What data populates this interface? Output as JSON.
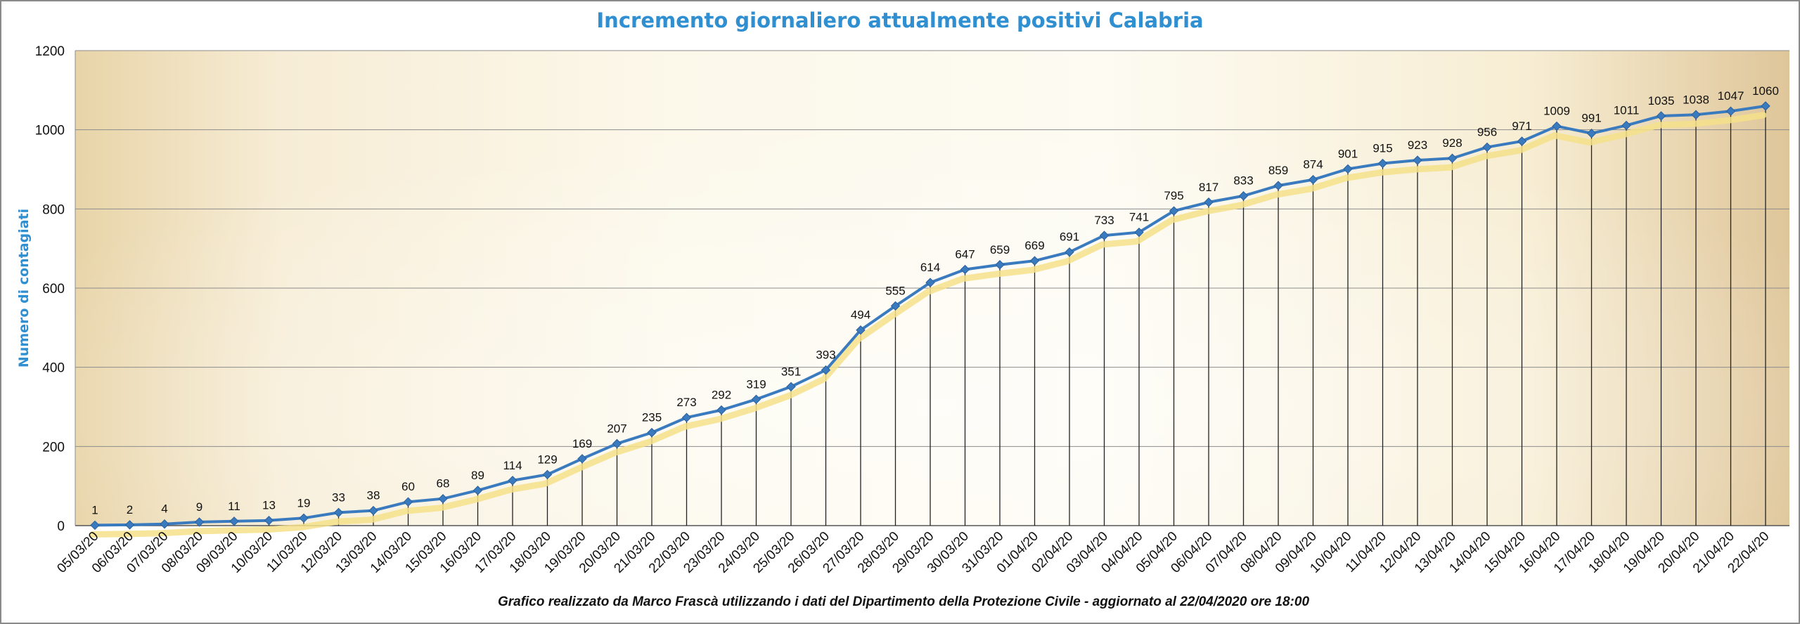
{
  "chart_data": {
    "type": "line",
    "title": "Incremento giornaliero attualmente positivi Calabria",
    "ylabel": "Numero di contagiati",
    "footer": "Grafico  realizzato da Marco Frascà  utilizzando i dati del Dipartimento  della Protezione Civile - aggiornato al 22/04/2020 ore 18:00",
    "ylim": [
      0,
      1200
    ],
    "yticks": [
      "0",
      "200",
      "400",
      "600",
      "800",
      "1000",
      "1200"
    ],
    "grid": true,
    "categories": [
      "05/03/20",
      "06/03/20",
      "07/03/20",
      "08/03/20",
      "09/03/20",
      "10/03/20",
      "11/03/20",
      "12/03/20",
      "13/03/20",
      "14/03/20",
      "15/03/20",
      "16/03/20",
      "17/03/20",
      "18/03/20",
      "19/03/20",
      "20/03/20",
      "21/03/20",
      "22/03/20",
      "23/03/20",
      "24/03/20",
      "25/03/20",
      "26/03/20",
      "27/03/20",
      "28/03/20",
      "29/03/20",
      "30/03/20",
      "31/03/20",
      "01/04/20",
      "02/04/20",
      "03/04/20",
      "04/04/20",
      "05/04/20",
      "06/04/20",
      "07/04/20",
      "08/04/20",
      "09/04/20",
      "10/04/20",
      "11/04/20",
      "12/04/20",
      "13/04/20",
      "14/04/20",
      "15/04/20",
      "16/04/20",
      "17/04/20",
      "18/04/20",
      "19/04/20",
      "20/04/20",
      "21/04/20",
      "22/04/20"
    ],
    "values": [
      1,
      2,
      4,
      9,
      11,
      13,
      19,
      33,
      38,
      60,
      68,
      89,
      114,
      129,
      169,
      207,
      235,
      273,
      292,
      319,
      351,
      393,
      494,
      555,
      614,
      647,
      659,
      669,
      691,
      733,
      741,
      795,
      817,
      833,
      859,
      874,
      901,
      915,
      923,
      928,
      956,
      971,
      1009,
      991,
      1011,
      1035,
      1038,
      1047,
      1060
    ],
    "colors": {
      "line": "#3a7bbf",
      "marker": "#3a7bbf",
      "title": "#2f8fd0",
      "shadow": "#f5e08a"
    }
  }
}
